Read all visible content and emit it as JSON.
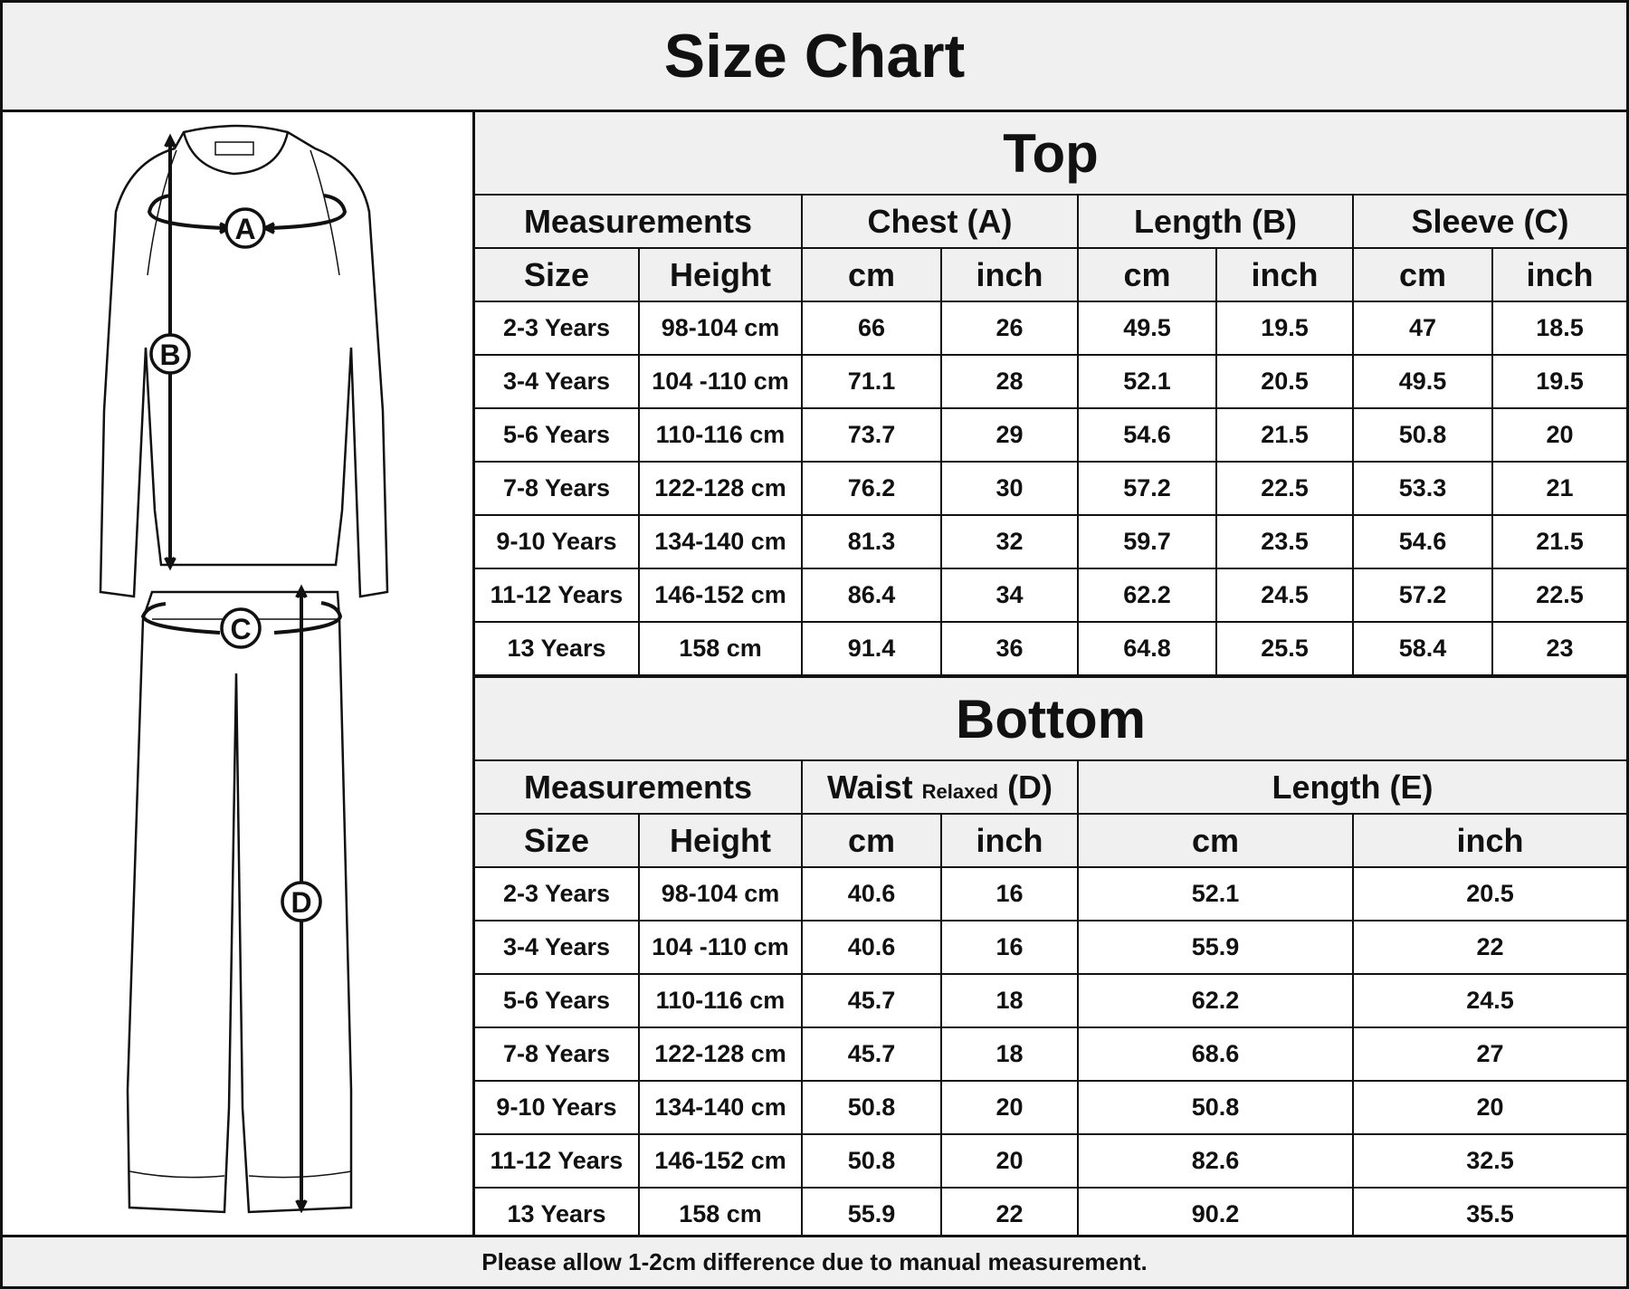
{
  "title": "Size Chart",
  "top": {
    "section_title": "Top",
    "group_headers": [
      "Measurements",
      "Chest (A)",
      "Length (B)",
      "Sleeve (C)"
    ],
    "sub_headers": [
      "Size",
      "Height",
      "cm",
      "inch",
      "cm",
      "inch",
      "cm",
      "inch"
    ],
    "rows": [
      [
        "2-3 Years",
        "98-104 cm",
        "66",
        "26",
        "49.5",
        "19.5",
        "47",
        "18.5"
      ],
      [
        "3-4 Years",
        "104 -110 cm",
        "71.1",
        "28",
        "52.1",
        "20.5",
        "49.5",
        "19.5"
      ],
      [
        "5-6 Years",
        "110-116 cm",
        "73.7",
        "29",
        "54.6",
        "21.5",
        "50.8",
        "20"
      ],
      [
        "7-8 Years",
        "122-128 cm",
        "76.2",
        "30",
        "57.2",
        "22.5",
        "53.3",
        "21"
      ],
      [
        "9-10 Years",
        "134-140 cm",
        "81.3",
        "32",
        "59.7",
        "23.5",
        "54.6",
        "21.5"
      ],
      [
        "11-12 Years",
        "146-152 cm",
        "86.4",
        "34",
        "62.2",
        "24.5",
        "57.2",
        "22.5"
      ],
      [
        "13 Years",
        "158 cm",
        "91.4",
        "36",
        "64.8",
        "25.5",
        "58.4",
        "23"
      ]
    ]
  },
  "bottom": {
    "section_title": "Bottom",
    "group_headers": [
      "Measurements",
      "Waist",
      "Relaxed",
      "(D)",
      "Length (E)"
    ],
    "sub_headers": [
      "Size",
      "Height",
      "cm",
      "inch",
      "cm",
      "inch"
    ],
    "rows": [
      [
        "2-3 Years",
        "98-104 cm",
        "40.6",
        "16",
        "52.1",
        "20.5"
      ],
      [
        "3-4 Years",
        "104 -110 cm",
        "40.6",
        "16",
        "55.9",
        "22"
      ],
      [
        "5-6 Years",
        "110-116 cm",
        "45.7",
        "18",
        "62.2",
        "24.5"
      ],
      [
        "7-8 Years",
        "122-128 cm",
        "45.7",
        "18",
        "68.6",
        "27"
      ],
      [
        "9-10 Years",
        "134-140 cm",
        "50.8",
        "20",
        "50.8",
        "20"
      ],
      [
        "11-12 Years",
        "146-152 cm",
        "50.8",
        "20",
        "82.6",
        "32.5"
      ],
      [
        "13 Years",
        "158 cm",
        "55.9",
        "22",
        "90.2",
        "35.5"
      ]
    ]
  },
  "diagram_labels": [
    "A",
    "B",
    "C",
    "D"
  ],
  "footer": "Please allow 1-2cm difference due to manual measurement."
}
